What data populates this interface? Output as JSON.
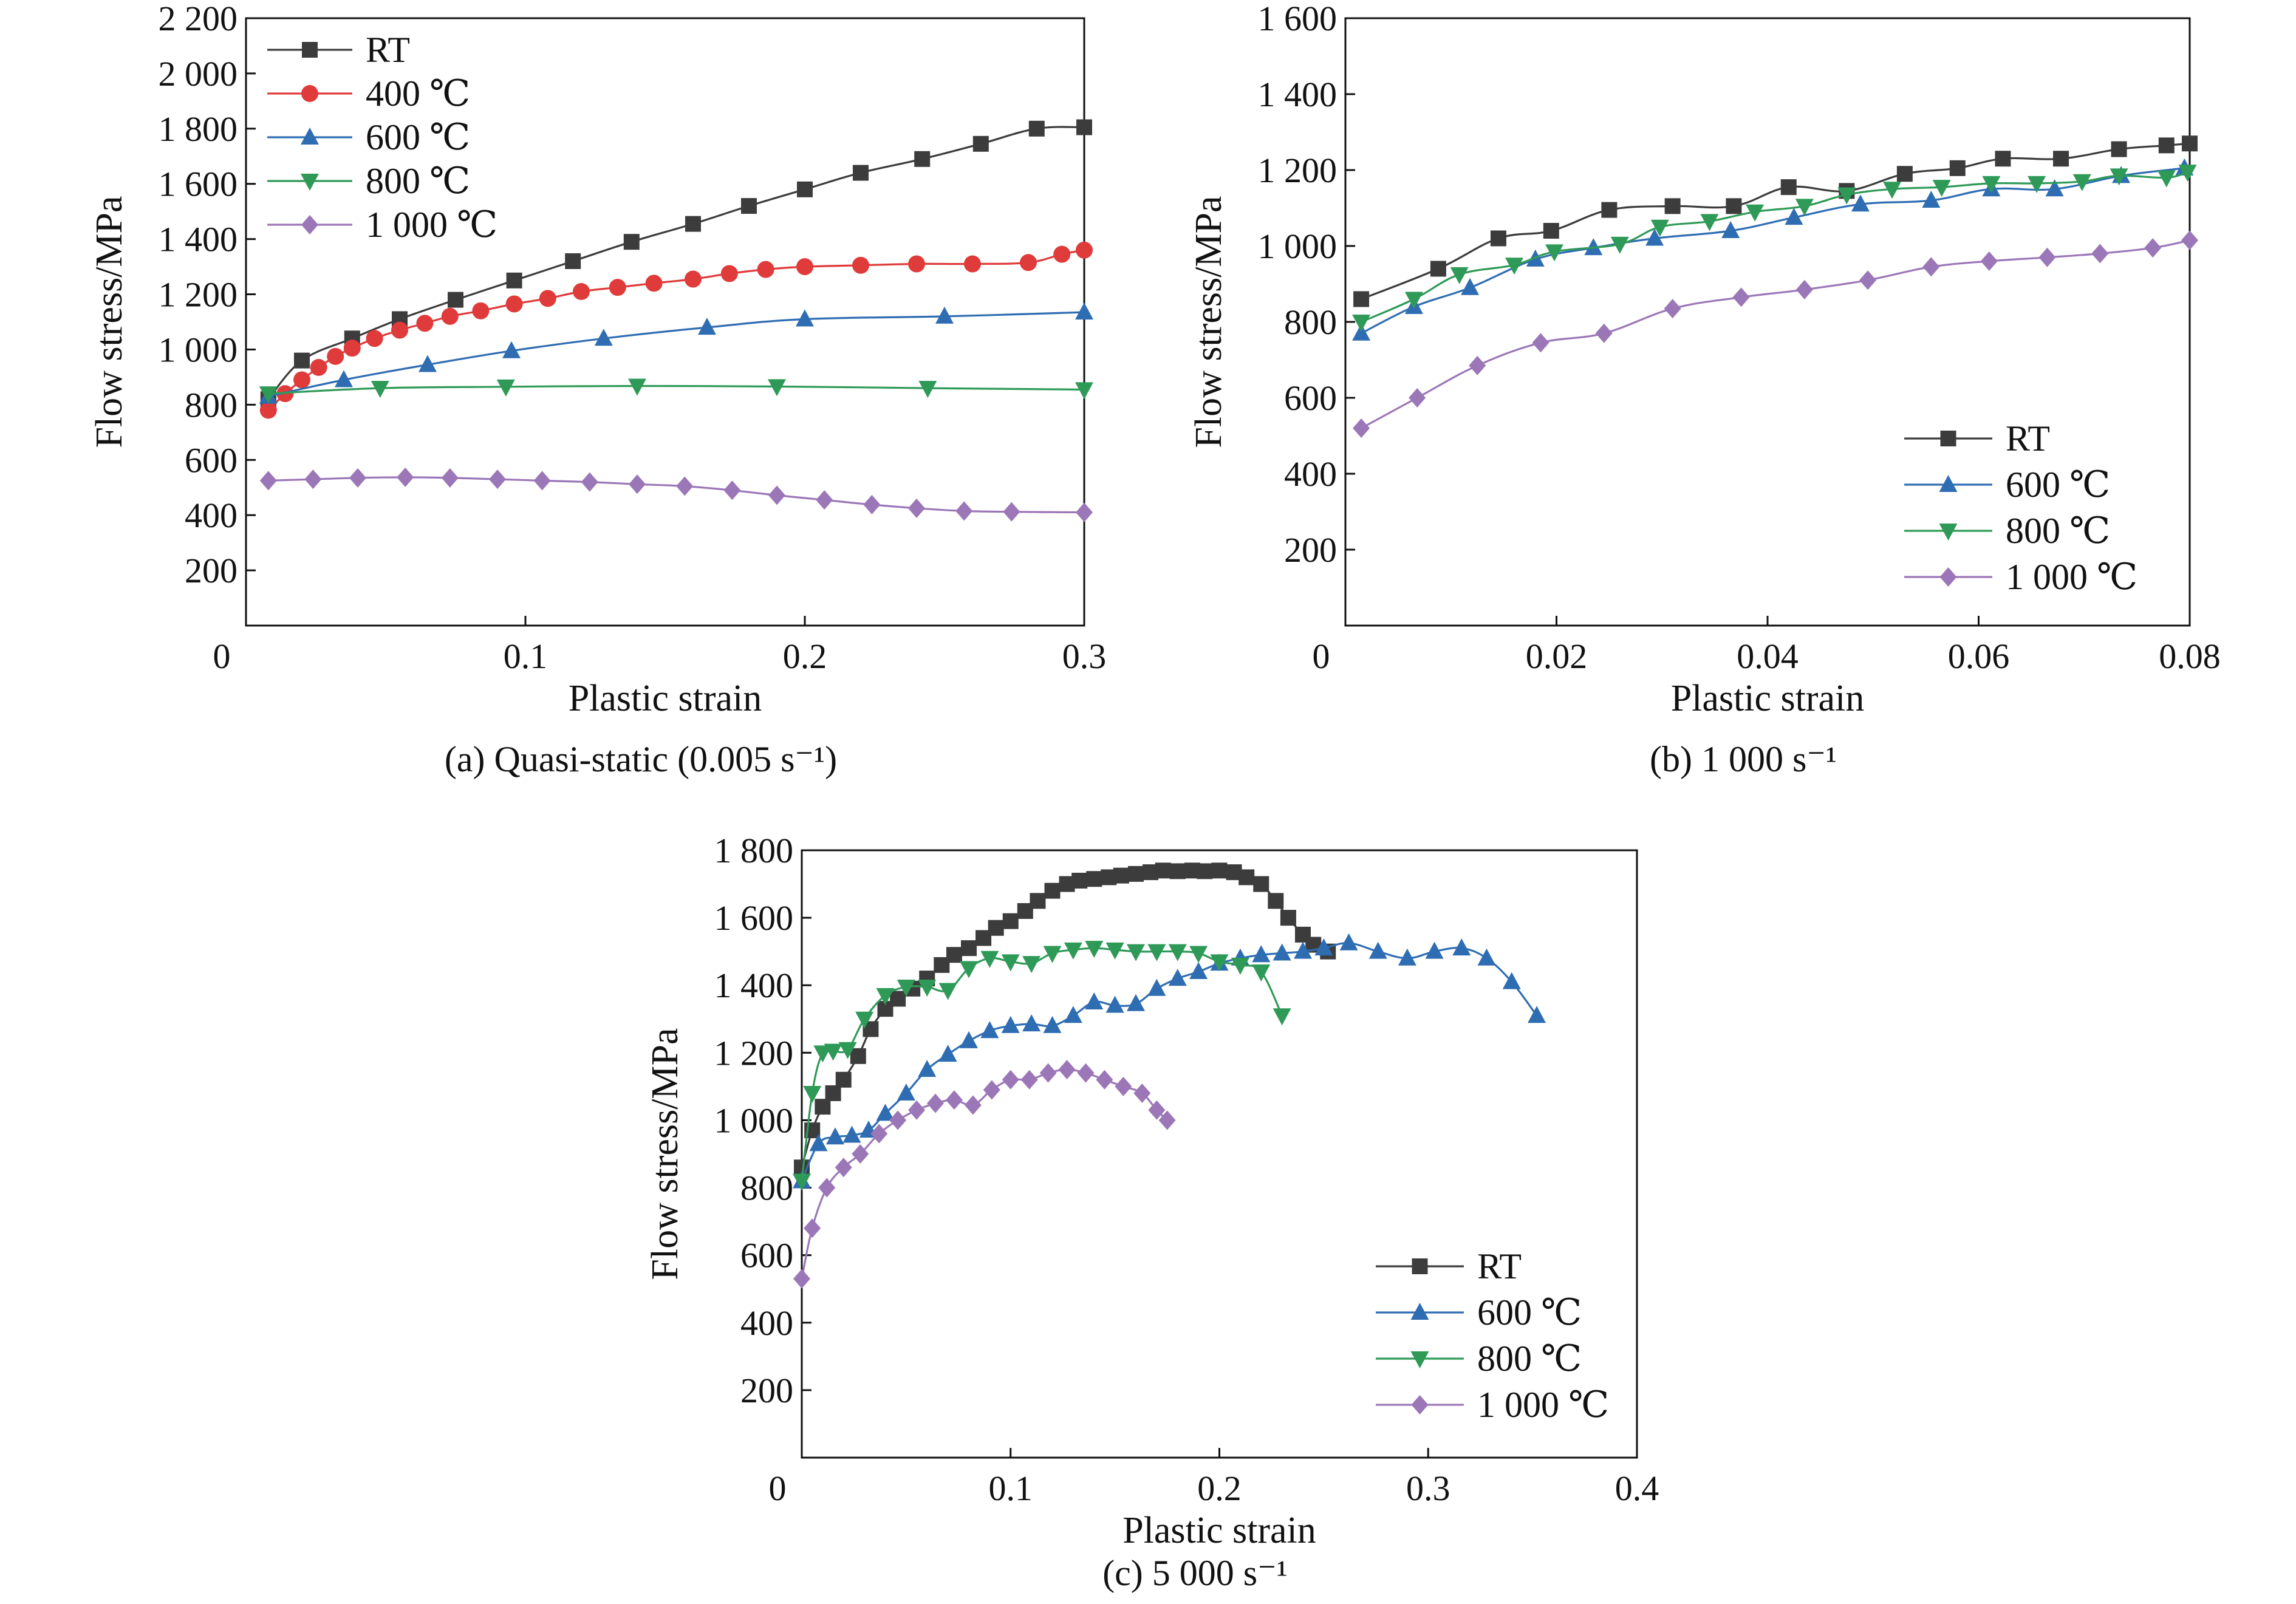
{
  "charts": [
    {
      "type": "line",
      "caption": "(a) Quasi-static (0.005 s⁻¹)",
      "xlabel": "Plastic strain",
      "ylabel": "Flow stress/MPa",
      "xlim": [
        0,
        0.3
      ],
      "ylim": [
        0,
        2200
      ],
      "xticks": [
        0,
        0.1,
        0.2,
        0.3
      ],
      "xtick_labels": [
        "0",
        "0.1",
        "0.2",
        "0.3"
      ],
      "yticks": [
        200,
        400,
        600,
        800,
        1000,
        1200,
        1400,
        1600,
        1800,
        2000,
        2200
      ],
      "ytick_labels": [
        "200",
        "400",
        "600",
        "800",
        "1 000",
        "1 200",
        "1 400",
        "1 600",
        "1 800",
        "2 000",
        "2 200"
      ],
      "legend_position": "top-left",
      "series": [
        {
          "name": "RT",
          "color": "#3c3c3c",
          "marker": "square",
          "x": [
            0.008,
            0.02,
            0.038,
            0.055,
            0.075,
            0.096,
            0.117,
            0.138,
            0.16,
            0.18,
            0.2,
            0.22,
            0.242,
            0.263,
            0.283,
            0.3
          ],
          "y": [
            820,
            960,
            1040,
            1110,
            1180,
            1250,
            1320,
            1390,
            1455,
            1520,
            1580,
            1640,
            1690,
            1745,
            1800,
            1805
          ]
        },
        {
          "name": "400 ℃",
          "color": "#e03b3b",
          "marker": "circle",
          "x": [
            0.008,
            0.014,
            0.02,
            0.026,
            0.032,
            0.038,
            0.046,
            0.055,
            0.064,
            0.073,
            0.084,
            0.096,
            0.108,
            0.12,
            0.133,
            0.146,
            0.16,
            0.173,
            0.186,
            0.2,
            0.22,
            0.24,
            0.26,
            0.28,
            0.292,
            0.3
          ],
          "y": [
            780,
            840,
            890,
            935,
            975,
            1005,
            1040,
            1070,
            1095,
            1120,
            1140,
            1165,
            1185,
            1210,
            1225,
            1240,
            1255,
            1275,
            1290,
            1300,
            1305,
            1310,
            1310,
            1315,
            1345,
            1360
          ]
        },
        {
          "name": "600 ℃",
          "color": "#2f6db3",
          "marker": "triangle-up",
          "x": [
            0.008,
            0.035,
            0.065,
            0.095,
            0.128,
            0.165,
            0.2,
            0.25,
            0.3
          ],
          "y": [
            830,
            890,
            945,
            995,
            1040,
            1080,
            1110,
            1120,
            1135
          ]
        },
        {
          "name": "800 ℃",
          "color": "#2f9a58",
          "marker": "triangle-down",
          "x": [
            0.008,
            0.048,
            0.093,
            0.14,
            0.19,
            0.244,
            0.3
          ],
          "y": [
            840,
            860,
            865,
            868,
            866,
            860,
            855
          ]
        },
        {
          "name": "1 000 ℃",
          "color": "#9b77b8",
          "marker": "diamond",
          "x": [
            0.008,
            0.024,
            0.04,
            0.057,
            0.073,
            0.09,
            0.106,
            0.123,
            0.14,
            0.157,
            0.174,
            0.19,
            0.207,
            0.224,
            0.24,
            0.257,
            0.274,
            0.3
          ],
          "y": [
            525,
            530,
            535,
            537,
            535,
            530,
            525,
            520,
            512,
            505,
            490,
            472,
            455,
            438,
            425,
            415,
            412,
            410
          ]
        }
      ]
    },
    {
      "type": "line",
      "caption": "(b) 1 000 s⁻¹",
      "xlabel": "Plastic strain",
      "ylabel": "Flow stress/MPa",
      "xlim": [
        0,
        0.08
      ],
      "ylim": [
        0,
        1600
      ],
      "xticks": [
        0,
        0.02,
        0.04,
        0.06,
        0.08
      ],
      "xtick_labels": [
        "0",
        "0.02",
        "0.04",
        "0.06",
        "0.08"
      ],
      "yticks": [
        200,
        400,
        600,
        800,
        1000,
        1200,
        1400,
        1600
      ],
      "ytick_labels": [
        "200",
        "400",
        "600",
        "800",
        "1 000",
        "1 200",
        "1 400",
        "1 600"
      ],
      "legend_position": "bottom-right",
      "series": [
        {
          "name": "RT",
          "color": "#3c3c3c",
          "marker": "square",
          "x": [
            0.0015,
            0.0088,
            0.0145,
            0.0195,
            0.025,
            0.031,
            0.0368,
            0.042,
            0.0475,
            0.053,
            0.058,
            0.0623,
            0.0678,
            0.0733,
            0.0778,
            0.08
          ],
          "y": [
            860,
            940,
            1020,
            1040,
            1095,
            1105,
            1105,
            1155,
            1145,
            1190,
            1205,
            1230,
            1230,
            1255,
            1265,
            1270
          ]
        },
        {
          "name": "600 ℃",
          "color": "#2f6db3",
          "marker": "triangle-up",
          "x": [
            0.0015,
            0.0065,
            0.0118,
            0.018,
            0.0235,
            0.0293,
            0.0365,
            0.0425,
            0.0488,
            0.0555,
            0.0612,
            0.0672,
            0.0735,
            0.0795
          ],
          "y": [
            770,
            840,
            890,
            965,
            995,
            1020,
            1040,
            1075,
            1110,
            1120,
            1150,
            1150,
            1185,
            1205
          ]
        },
        {
          "name": "800 ℃",
          "color": "#2f9a58",
          "marker": "triangle-down",
          "x": [
            0.0015,
            0.0065,
            0.0108,
            0.016,
            0.0198,
            0.026,
            0.0298,
            0.0345,
            0.0388,
            0.0435,
            0.0475,
            0.0518,
            0.0565,
            0.0612,
            0.0655,
            0.0698,
            0.0733,
            0.0778,
            0.0798
          ],
          "y": [
            800,
            860,
            925,
            950,
            985,
            1005,
            1050,
            1065,
            1090,
            1105,
            1135,
            1150,
            1155,
            1165,
            1165,
            1170,
            1185,
            1180,
            1195
          ]
        },
        {
          "name": "1 000 ℃",
          "color": "#9b77b8",
          "marker": "diamond",
          "x": [
            0.0015,
            0.0068,
            0.0125,
            0.0185,
            0.0245,
            0.031,
            0.0375,
            0.0435,
            0.0495,
            0.0555,
            0.061,
            0.0665,
            0.0715,
            0.0765,
            0.08
          ],
          "y": [
            520,
            600,
            685,
            745,
            770,
            835,
            865,
            885,
            910,
            945,
            960,
            970,
            980,
            995,
            1015
          ]
        }
      ]
    },
    {
      "type": "line",
      "caption": "(c) 5 000 s⁻¹",
      "xlabel": "Plastic strain",
      "ylabel": "Flow stress/MPa",
      "xlim": [
        0,
        0.4
      ],
      "ylim": [
        0,
        1800
      ],
      "xticks": [
        0,
        0.1,
        0.2,
        0.3,
        0.4
      ],
      "xtick_labels": [
        "0",
        "0.1",
        "0.2",
        "0.3",
        "0.4"
      ],
      "yticks": [
        200,
        400,
        600,
        800,
        1000,
        1200,
        1400,
        1600,
        1800
      ],
      "ytick_labels": [
        "200",
        "400",
        "600",
        "800",
        "1 000",
        "1 200",
        "1 400",
        "1 600",
        "1 800"
      ],
      "legend_position": "bottom-right",
      "series": [
        {
          "name": "RT",
          "color": "#3c3c3c",
          "marker": "square",
          "x": [
            0.0,
            0.005,
            0.01,
            0.015,
            0.02,
            0.027,
            0.033,
            0.04,
            0.046,
            0.053,
            0.06,
            0.067,
            0.073,
            0.08,
            0.087,
            0.093,
            0.1,
            0.107,
            0.113,
            0.12,
            0.127,
            0.133,
            0.14,
            0.147,
            0.153,
            0.16,
            0.167,
            0.173,
            0.18,
            0.187,
            0.193,
            0.2,
            0.207,
            0.213,
            0.22,
            0.227,
            0.233,
            0.24,
            0.245,
            0.252
          ],
          "y": [
            860,
            970,
            1040,
            1080,
            1120,
            1190,
            1270,
            1330,
            1360,
            1390,
            1420,
            1460,
            1490,
            1510,
            1540,
            1570,
            1590,
            1620,
            1650,
            1680,
            1700,
            1710,
            1715,
            1720,
            1725,
            1730,
            1735,
            1740,
            1738,
            1740,
            1738,
            1740,
            1735,
            1720,
            1700,
            1650,
            1600,
            1550,
            1520,
            1500
          ]
        },
        {
          "name": "600 ℃",
          "color": "#2f6db3",
          "marker": "triangle-up",
          "x": [
            0.0,
            0.008,
            0.016,
            0.024,
            0.032,
            0.04,
            0.05,
            0.06,
            0.07,
            0.08,
            0.09,
            0.1,
            0.11,
            0.12,
            0.13,
            0.14,
            0.15,
            0.16,
            0.17,
            0.18,
            0.19,
            0.2,
            0.21,
            0.22,
            0.23,
            0.24,
            0.25,
            0.262,
            0.276,
            0.29,
            0.303,
            0.316,
            0.328,
            0.34,
            0.352
          ],
          "y": [
            820,
            930,
            950,
            955,
            970,
            1020,
            1080,
            1150,
            1195,
            1235,
            1265,
            1280,
            1285,
            1280,
            1310,
            1350,
            1340,
            1345,
            1390,
            1420,
            1440,
            1465,
            1480,
            1490,
            1495,
            1500,
            1510,
            1525,
            1500,
            1480,
            1500,
            1510,
            1480,
            1410,
            1310
          ]
        },
        {
          "name": "800 ℃",
          "color": "#2f9a58",
          "marker": "triangle-down",
          "x": [
            0.0,
            0.005,
            0.01,
            0.015,
            0.022,
            0.03,
            0.04,
            0.05,
            0.06,
            0.07,
            0.08,
            0.09,
            0.1,
            0.11,
            0.12,
            0.13,
            0.14,
            0.15,
            0.16,
            0.17,
            0.18,
            0.19,
            0.2,
            0.21,
            0.22,
            0.23
          ],
          "y": [
            820,
            1080,
            1200,
            1205,
            1210,
            1300,
            1370,
            1395,
            1395,
            1385,
            1450,
            1480,
            1470,
            1465,
            1495,
            1505,
            1510,
            1505,
            1500,
            1500,
            1500,
            1495,
            1470,
            1460,
            1440,
            1310
          ]
        },
        {
          "name": "1 000 ℃",
          "color": "#9b77b8",
          "marker": "diamond",
          "x": [
            0.0,
            0.005,
            0.012,
            0.02,
            0.028,
            0.037,
            0.046,
            0.055,
            0.064,
            0.073,
            0.082,
            0.091,
            0.1,
            0.109,
            0.118,
            0.127,
            0.136,
            0.145,
            0.154,
            0.163,
            0.17,
            0.175
          ],
          "y": [
            530,
            680,
            800,
            860,
            900,
            960,
            1000,
            1030,
            1050,
            1060,
            1045,
            1090,
            1120,
            1120,
            1140,
            1150,
            1140,
            1120,
            1100,
            1080,
            1030,
            1000
          ]
        }
      ]
    }
  ]
}
